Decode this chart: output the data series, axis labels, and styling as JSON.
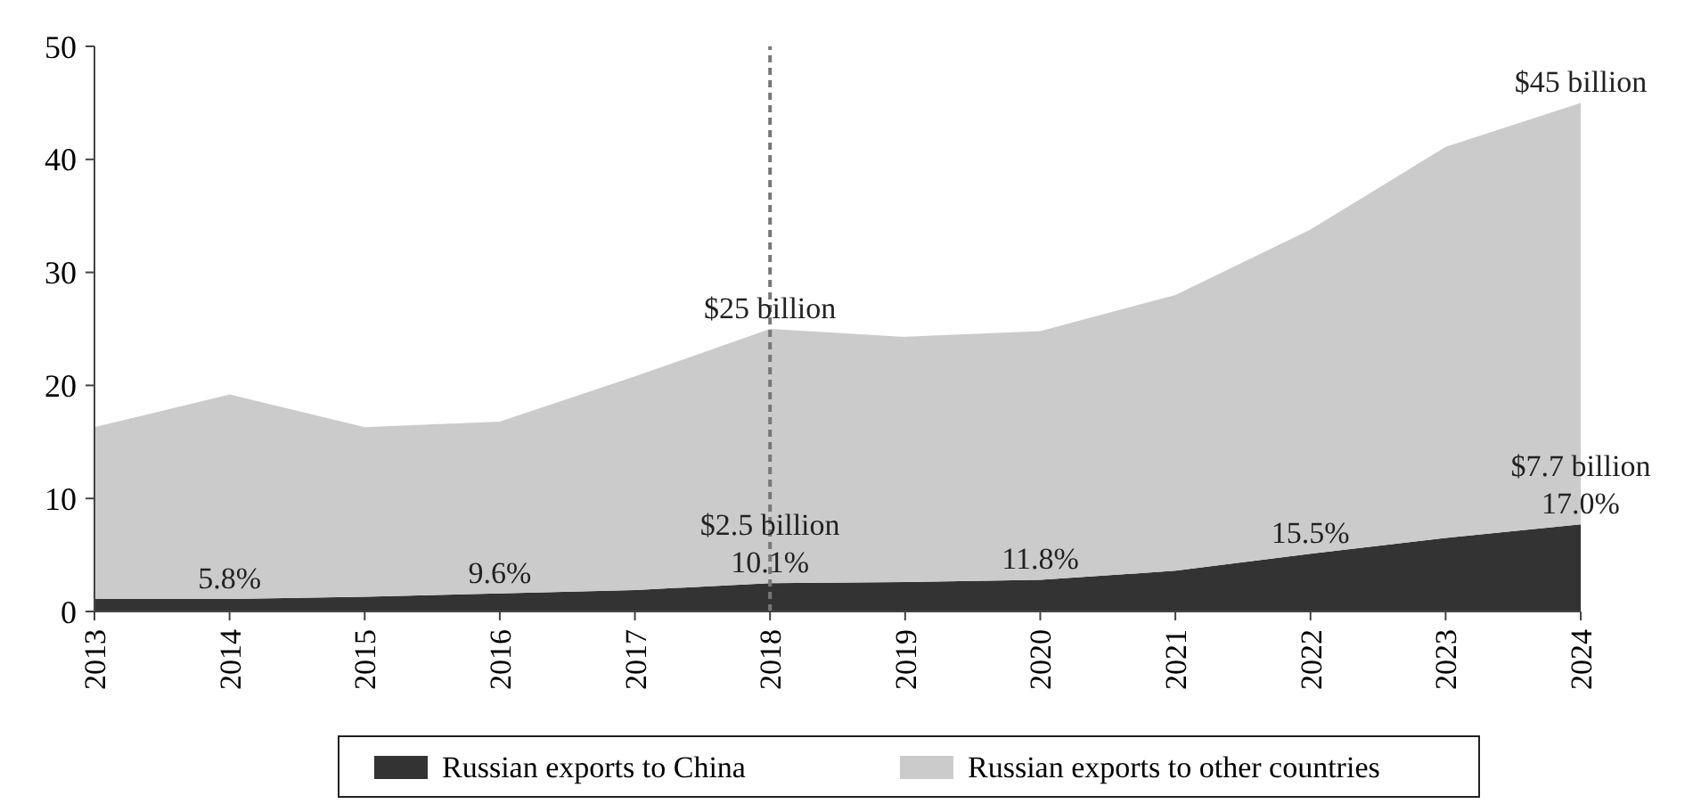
{
  "chart_data": {
    "type": "area",
    "stacked": true,
    "categories": [
      "2013",
      "2014",
      "2015",
      "2016",
      "2017",
      "2018",
      "2019",
      "2020",
      "2021",
      "2022",
      "2023",
      "2024"
    ],
    "series": [
      {
        "name": "Russian exports to China",
        "color": "#333333",
        "values": [
          1.1,
          1.1,
          1.3,
          1.6,
          1.9,
          2.5,
          2.6,
          2.8,
          3.6,
          5.1,
          6.5,
          7.7
        ]
      },
      {
        "name": "Russian exports to other countries",
        "color": "#cbcbcb",
        "values": [
          15.2,
          18.1,
          15.0,
          15.2,
          18.9,
          22.5,
          21.7,
          22.0,
          24.4,
          28.7,
          34.6,
          37.3
        ]
      }
    ],
    "ylim": [
      0,
      50
    ],
    "yticks": [
      0,
      10,
      20,
      30,
      40,
      50
    ],
    "grid": false,
    "legend": "bottom",
    "ref_lines": [
      {
        "axis": "x",
        "value": "2018",
        "color": "#777777",
        "line_style": "dashed"
      }
    ],
    "annotations": [
      {
        "text": "5.8%",
        "x": "2014",
        "y": 1.1
      },
      {
        "text": "9.6%",
        "x": "2016",
        "y": 1.6
      },
      {
        "text": "10.1%",
        "x": "2018",
        "y": 2.5
      },
      {
        "text": "$2.5 billion",
        "x": "2018",
        "y": 2.5
      },
      {
        "text": "11.8%",
        "x": "2020",
        "y": 2.8
      },
      {
        "text": "15.5%",
        "x": "2022",
        "y": 5.1
      },
      {
        "text": "17.0%",
        "x": "2024",
        "y": 7.7
      },
      {
        "text": "$7.7 billion",
        "x": "2024",
        "y": 7.7
      },
      {
        "text": "$25 billion",
        "x": "2018",
        "y": 25
      },
      {
        "text": "$45 billion",
        "x": "2024",
        "y": 45
      }
    ]
  }
}
